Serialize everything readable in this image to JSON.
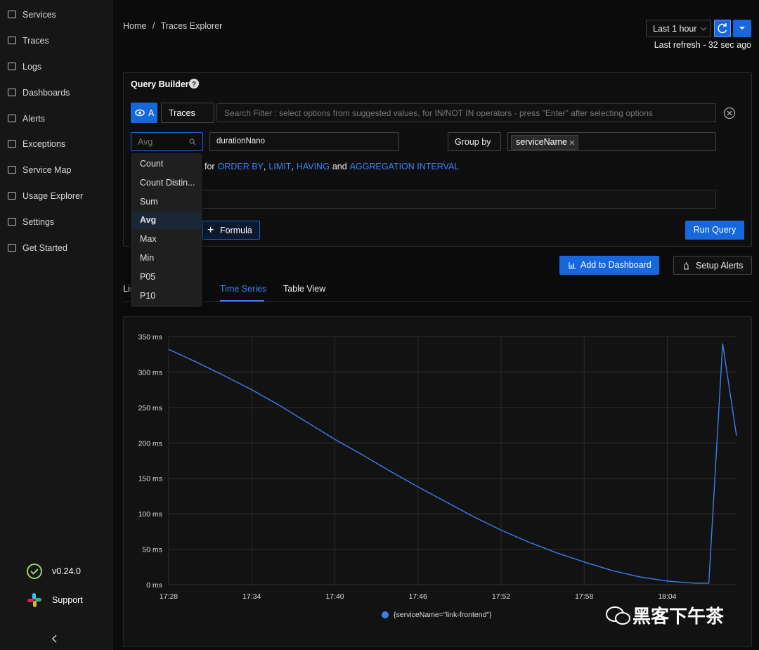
{
  "sidebar": {
    "items": [
      "Services",
      "Traces",
      "Logs",
      "Dashboards",
      "Alerts",
      "Exceptions",
      "Service Map",
      "Usage Explorer",
      "Settings",
      "Get Started"
    ],
    "version": "v0.24.0",
    "support": "Support"
  },
  "breadcrumb": {
    "items": [
      "Home",
      "Traces Explorer"
    ],
    "separator": "/"
  },
  "time_picker": {
    "range": "Last 1 hour",
    "last_refresh": "Last refresh - 32 sec ago"
  },
  "query_builder": {
    "title": "Query Builder",
    "query_name": "A",
    "data_source": "Traces",
    "search_placeholder": "Search Filter : select options from suggested values, for IN/NOT IN operators - press \"Enter\" after selecting options",
    "aggregate_input": "Avg",
    "attribute": "durationNano",
    "group_by_label": "Group by",
    "group_by_tag": "serviceName",
    "hint": [
      {
        "text": "for",
        "link": false
      },
      {
        "text": "ORDER BY",
        "link": true
      },
      {
        "text": ",",
        "link": false
      },
      {
        "text": "LIMIT",
        "link": true
      },
      {
        "text": ",",
        "link": false
      },
      {
        "text": "HAVING",
        "link": true
      },
      {
        "text": "and",
        "link": false
      },
      {
        "text": "AGGREGATION INTERVAL",
        "link": true
      }
    ],
    "formula_button": "Formula",
    "run_button": "Run Query",
    "aggregate_options": [
      "Count",
      "Count Distin...",
      "Sum",
      "Avg",
      "Max",
      "Min",
      "P05",
      "P10"
    ],
    "selected_option": 3
  },
  "actions": {
    "add_to_dashboard": "Add to Dashboard",
    "setup_alerts": "Setup Alerts"
  },
  "tabs": {
    "items": [
      "List View",
      "Time Series",
      "Table View"
    ],
    "active": 1
  },
  "chart_data": {
    "type": "line",
    "x": [
      "17:28",
      "17:30",
      "17:32",
      "17:34",
      "17:36",
      "17:38",
      "17:40",
      "17:42",
      "17:44",
      "17:46",
      "17:48",
      "17:50",
      "17:52",
      "17:54",
      "17:56",
      "17:58",
      "18:00",
      "18:02",
      "18:04",
      "18:06",
      "18:07",
      "18:08",
      "18:09"
    ],
    "series": [
      {
        "name": "{serviceName=\"link-frontend\"}",
        "color": "#3b7ff0",
        "values": [
          332,
          314,
          295,
          275,
          253,
          229,
          205,
          183,
          160,
          138,
          117,
          96,
          77,
          60,
          45,
          32,
          20,
          11,
          5,
          2,
          2,
          340,
          210
        ]
      }
    ],
    "xlim": [
      "17:28",
      "18:09"
    ],
    "xticks": [
      "17:28",
      "17:34",
      "17:40",
      "17:46",
      "17:52",
      "17:58",
      "18:04"
    ],
    "ylim": [
      0,
      350
    ],
    "yticks": [
      {
        "value": 0,
        "label": "0 ms"
      },
      {
        "value": 50,
        "label": "50 ms"
      },
      {
        "value": 100,
        "label": "100 ms"
      },
      {
        "value": 150,
        "label": "150 ms"
      },
      {
        "value": 200,
        "label": "200 ms"
      },
      {
        "value": 250,
        "label": "250 ms"
      },
      {
        "value": 300,
        "label": "300 ms"
      },
      {
        "value": 350,
        "label": "350 ms"
      }
    ],
    "grid": true
  },
  "watermark": "黑客下午茶"
}
